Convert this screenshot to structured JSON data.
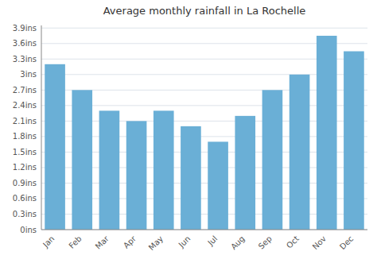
{
  "chart_data": {
    "type": "bar",
    "title": "Average monthly rainfall in La Rochelle",
    "categories": [
      "Jan",
      "Feb",
      "Mar",
      "Apr",
      "May",
      "Jun",
      "Jul",
      "Aug",
      "Sep",
      "Oct",
      "Nov",
      "Dec"
    ],
    "values": [
      3.2,
      2.7,
      2.3,
      2.1,
      2.3,
      2.0,
      1.7,
      2.2,
      2.7,
      3.0,
      3.75,
      3.45
    ],
    "color": "#6aafd6",
    "ylim": [
      0,
      3.95
    ],
    "yticks": [
      {
        "value": 0,
        "label": "0ins"
      },
      {
        "value": 0.3,
        "label": "0.3ins"
      },
      {
        "value": 0.6,
        "label": "0.6ins"
      },
      {
        "value": 0.9,
        "label": "0.9ins"
      },
      {
        "value": 1.2,
        "label": "1.2ins"
      },
      {
        "value": 1.5,
        "label": "1.5ins"
      },
      {
        "value": 1.8,
        "label": "1.8ins"
      },
      {
        "value": 2.1,
        "label": "2.1ins"
      },
      {
        "value": 2.4,
        "label": "2.4ins"
      },
      {
        "value": 2.7,
        "label": "2.7ins"
      },
      {
        "value": 3.0,
        "label": "3ins"
      },
      {
        "value": 3.3,
        "label": "3.3ins"
      },
      {
        "value": 3.6,
        "label": "3.6ins"
      },
      {
        "value": 3.9,
        "label": "3.9ins"
      }
    ],
    "grid": true
  }
}
